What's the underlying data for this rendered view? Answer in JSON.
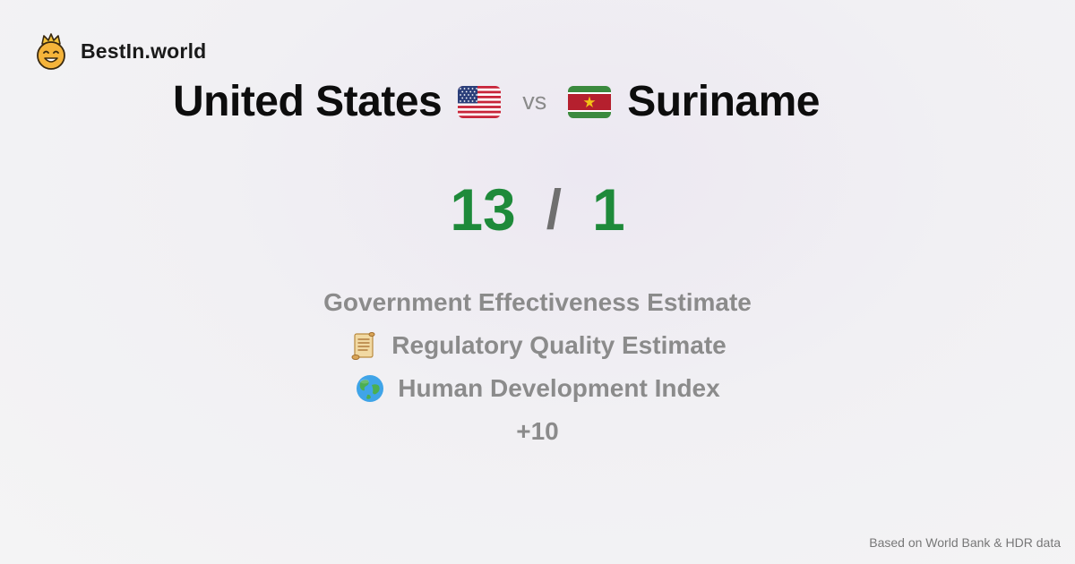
{
  "brand": {
    "name": "BestIn.world",
    "logo_icon": "crown-smiley-icon"
  },
  "comparison": {
    "left_country": "United States",
    "left_flag_icon": "us-flag-icon",
    "vs_label": "vs",
    "right_country": "Suriname",
    "right_flag_icon": "suriname-flag-icon"
  },
  "score": {
    "left": "13",
    "separator": "/",
    "right": "1"
  },
  "metrics": [
    {
      "label": "Government Effectiveness Estimate",
      "icon": ""
    },
    {
      "label": "Regulatory Quality Estimate",
      "icon": "scroll-icon"
    },
    {
      "label": "Human Development Index",
      "icon": "globe-icon"
    }
  ],
  "more_label": "+10",
  "footer": "Based on World Bank & HDR data",
  "colors": {
    "score_green": "#1e8a3a",
    "muted_text": "#8b8b8b",
    "brand_gold": "#f2b52a"
  }
}
